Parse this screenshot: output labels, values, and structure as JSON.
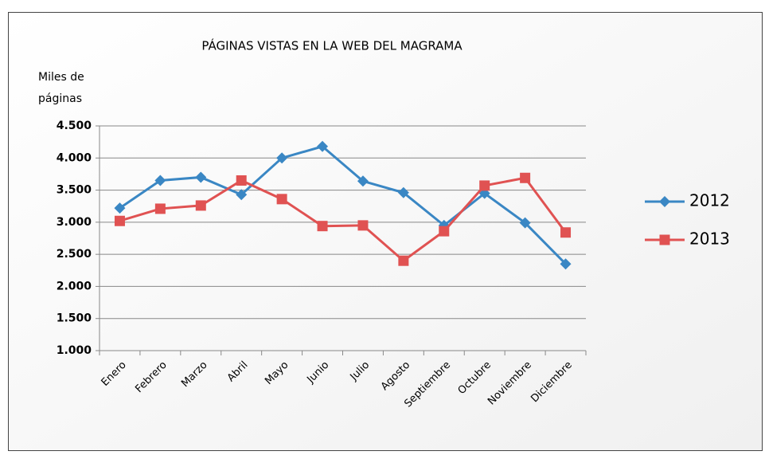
{
  "chart_data": {
    "type": "line",
    "title": "PÁGINAS VISTAS EN LA WEB DEL  MAGRAMA",
    "y_label": [
      "Miles de",
      "páginas"
    ],
    "categories": [
      "Enero",
      "Febrero",
      "Marzo",
      "Abril",
      "Mayo",
      "Junio",
      "Julio",
      "Agosto",
      "Septiembre",
      "Octubre",
      "Noviembre",
      "Diciembre"
    ],
    "series": [
      {
        "name": "2012",
        "color": "#3a87c4",
        "marker": "diamond",
        "values": [
          3220,
          3650,
          3700,
          3430,
          4000,
          4180,
          3640,
          3460,
          2950,
          3450,
          2990,
          2350
        ]
      },
      {
        "name": "2013",
        "color": "#e05252",
        "marker": "square",
        "values": [
          3020,
          3210,
          3260,
          3650,
          3360,
          2940,
          2950,
          2400,
          2860,
          3570,
          3690,
          2840
        ]
      }
    ],
    "ylim": [
      1000,
      4500
    ],
    "yticks": [
      {
        "value": 1000,
        "label": "1.000"
      },
      {
        "value": 1500,
        "label": "1.500"
      },
      {
        "value": 2000,
        "label": "2.000"
      },
      {
        "value": 2500,
        "label": "2.500"
      },
      {
        "value": 3000,
        "label": "3.000"
      },
      {
        "value": 3500,
        "label": "3.500"
      },
      {
        "value": 4000,
        "label": "4.000"
      },
      {
        "value": 4500,
        "label": "4.500"
      }
    ],
    "grid": true,
    "legend": "right"
  }
}
